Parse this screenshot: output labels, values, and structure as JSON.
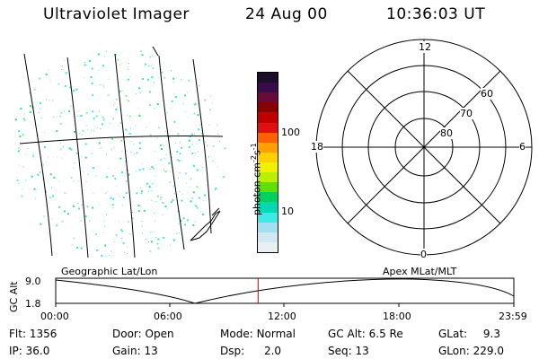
{
  "header": {
    "instrument": "Ultraviolet Imager",
    "date": "24 Aug 00",
    "time": "10:36:03 UT"
  },
  "colorbar": {
    "unit_label": "photon cm-2s-1",
    "ticks": [
      "100",
      "10"
    ],
    "colors": [
      "#1b0f2c",
      "#3a0b4a",
      "#6a0a3a",
      "#8a0000",
      "#c00000",
      "#e01010",
      "#ff6000",
      "#ffa000",
      "#ffd000",
      "#f0f000",
      "#b8f000",
      "#60e000",
      "#00d060",
      "#00d8b0",
      "#40e8e8",
      "#a0e0f0",
      "#d0e8f0",
      "#e8f0f4"
    ]
  },
  "polar": {
    "labels": {
      "top": "12",
      "left": "18",
      "right": "6",
      "bottom": "0"
    },
    "rings": [
      "60",
      "70",
      "80"
    ]
  },
  "timeline": {
    "left_label": "Geographic Lat/Lon",
    "right_label": "Apex MLat/MLT",
    "y_axis": "GC Alt",
    "y_top": "9.0",
    "y_bottom": "1.8",
    "x_ticks": [
      "00:00",
      "06:00",
      "12:00",
      "18:00",
      "23:59"
    ],
    "current_time_fraction": 0.4418
  },
  "status": {
    "row1": [
      {
        "label": "Flt:",
        "value": "1356"
      },
      {
        "label": "Door:",
        "value": "Open"
      },
      {
        "label": "Mode:",
        "value": "Normal"
      },
      {
        "label": "GC Alt:",
        "value": "6.5 Re"
      },
      {
        "label": "GLat:",
        "value": "9.3"
      }
    ],
    "row2": [
      {
        "label": "IP:",
        "value": "36.0"
      },
      {
        "label": "Gain:",
        "value": "13"
      },
      {
        "label": "Dsp:",
        "value": "2.0"
      },
      {
        "label": "Seq:",
        "value": "13"
      },
      {
        "label": "GLon:",
        "value": "229.0"
      }
    ]
  }
}
